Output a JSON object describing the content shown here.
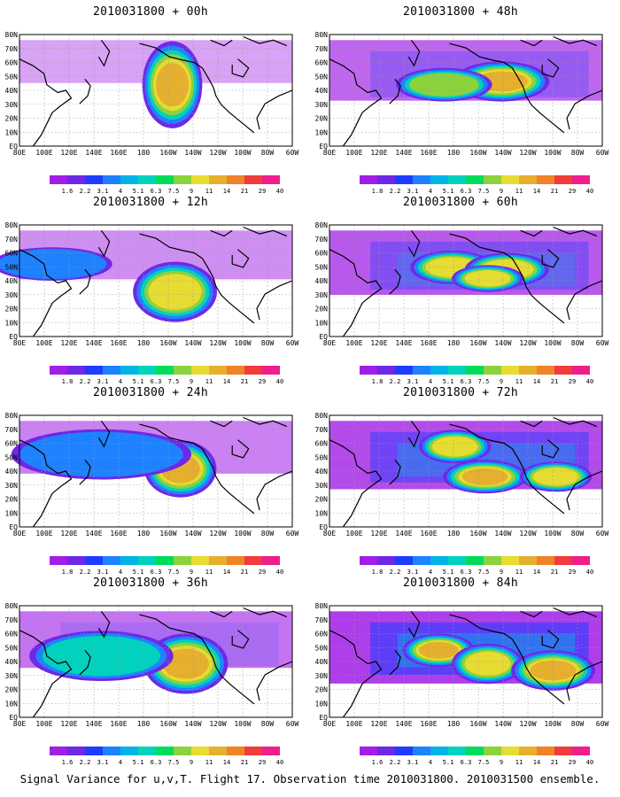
{
  "panels": [
    {
      "title": "2010031800 + 00h",
      "intensity": 0.1,
      "blobs": [
        [
          0.56,
          0.45,
          0.05,
          0.26,
          0.9
        ]
      ]
    },
    {
      "title": "2010031800 + 12h",
      "intensity": 0.25,
      "blobs": [
        [
          0.57,
          0.6,
          0.07,
          0.18,
          0.8
        ],
        [
          0.12,
          0.35,
          0.1,
          0.1,
          0.25
        ]
      ]
    },
    {
      "title": "2010031800 + 24h",
      "intensity": 0.35,
      "blobs": [
        [
          0.59,
          0.48,
          0.06,
          0.17,
          0.85
        ],
        [
          0.3,
          0.35,
          0.15,
          0.15,
          0.3
        ]
      ]
    },
    {
      "title": "2010031800 + 36h",
      "intensity": 0.45,
      "blobs": [
        [
          0.61,
          0.52,
          0.07,
          0.18,
          0.9
        ],
        [
          0.3,
          0.45,
          0.12,
          0.15,
          0.35
        ]
      ]
    },
    {
      "title": "2010031800 + 48h",
      "intensity": 0.55,
      "blobs": [
        [
          0.63,
          0.42,
          0.08,
          0.12,
          0.85
        ],
        [
          0.42,
          0.45,
          0.08,
          0.1,
          0.6
        ]
      ]
    },
    {
      "title": "2010031800 + 60h",
      "intensity": 0.65,
      "blobs": [
        [
          0.45,
          0.38,
          0.07,
          0.1,
          0.75
        ],
        [
          0.65,
          0.4,
          0.07,
          0.1,
          0.8
        ],
        [
          0.58,
          0.48,
          0.06,
          0.08,
          0.7
        ]
      ]
    },
    {
      "title": "2010031800 + 72h",
      "intensity": 0.75,
      "blobs": [
        [
          0.46,
          0.28,
          0.06,
          0.1,
          0.8
        ],
        [
          0.57,
          0.55,
          0.07,
          0.1,
          0.85
        ],
        [
          0.83,
          0.55,
          0.06,
          0.09,
          0.7
        ]
      ]
    },
    {
      "title": "2010031800 + 84h",
      "intensity": 0.85,
      "blobs": [
        [
          0.4,
          0.4,
          0.06,
          0.1,
          0.85
        ],
        [
          0.58,
          0.52,
          0.06,
          0.12,
          0.8
        ],
        [
          0.82,
          0.58,
          0.07,
          0.12,
          0.9
        ]
      ]
    }
  ],
  "lat_labels": [
    "80N",
    "70N",
    "60N",
    "50N",
    "40N",
    "30N",
    "20N",
    "10N",
    "EQ"
  ],
  "lon_labels": [
    "80E",
    "100E",
    "120E",
    "140E",
    "160E",
    "180",
    "160W",
    "140W",
    "120W",
    "100W",
    "80W",
    "60W"
  ],
  "colorbar": {
    "labels": [
      "1.8",
      "2.2",
      "3.1",
      "4",
      "5.1",
      "6.3",
      "7.5",
      "9",
      "11",
      "14",
      "21",
      "29",
      "40"
    ],
    "colors": [
      "#a01ee6",
      "#6e28e6",
      "#1e3cff",
      "#1e82ff",
      "#00b4e6",
      "#00d2be",
      "#00dc5a",
      "#8cd23c",
      "#e6dc32",
      "#e6af2d",
      "#f08228",
      "#f03c3c",
      "#f01e8c"
    ]
  },
  "colorbar_labels_variant": {
    "panel_3": [
      "1.6",
      "2.2",
      "3.1",
      "4",
      "5.1",
      "6.3",
      "7.5",
      "9",
      "11",
      "14",
      "21",
      "29",
      "40"
    ],
    "panel_7": [
      "1.6",
      "2.2",
      "3.1",
      "4",
      "5.1",
      "6.3",
      "7.5",
      "9",
      "11",
      "14",
      "21",
      "29",
      "40"
    ],
    "panel_0": [
      "1.6",
      "2.2",
      "3.1",
      "4",
      "5.1",
      "6.3",
      "7.5",
      "9",
      "11",
      "14",
      "21",
      "29",
      "40"
    ]
  },
  "footer": "Signal Variance for u,v,T. Flight 17. Observation time 2010031800. 2010031500 ensemble."
}
